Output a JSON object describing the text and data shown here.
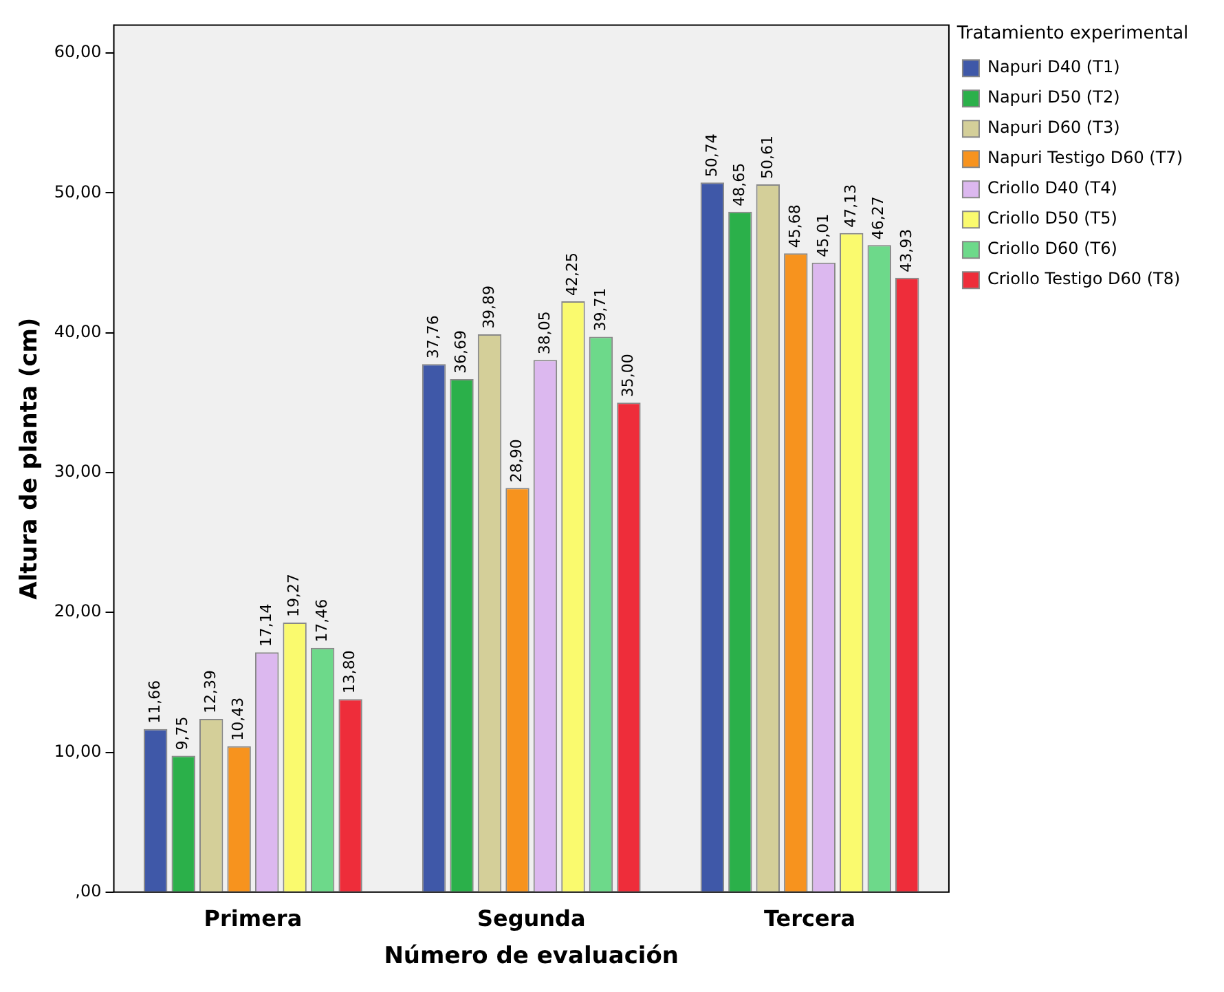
{
  "chart_data": {
    "type": "bar",
    "xlabel": "Número de evaluación",
    "ylabel": "Altura de planta (cm)",
    "legend_title": "Tratamiento experimental",
    "legend": "right",
    "categories": [
      "Primera",
      "Segunda",
      "Tercera"
    ],
    "series": [
      {
        "name": "Napuri D40 (T1)",
        "color": "#3f58a8",
        "values": [
          11.66,
          37.76,
          50.74
        ],
        "value_labels": [
          "11,66",
          "37,76",
          "50,74"
        ]
      },
      {
        "name": "Napuri D50 (T2)",
        "color": "#2bb04a",
        "values": [
          9.75,
          36.69,
          48.65
        ],
        "value_labels": [
          "9,75",
          "36,69",
          "48,65"
        ]
      },
      {
        "name": "Napuri D60 (T3)",
        "color": "#d4cf99",
        "values": [
          12.39,
          39.89,
          50.61
        ],
        "value_labels": [
          "12,39",
          "39,89",
          "50,61"
        ]
      },
      {
        "name": "Napuri Testigo D60 (T7)",
        "color": "#f7931e",
        "values": [
          10.43,
          28.9,
          45.68
        ],
        "value_labels": [
          "10,43",
          "28,90",
          "45,68"
        ]
      },
      {
        "name": "Criollo D40 (T4)",
        "color": "#dcb8ef",
        "values": [
          17.14,
          38.05,
          45.01
        ],
        "value_labels": [
          "17,14",
          "38,05",
          "45,01"
        ]
      },
      {
        "name": "Criollo D50 (T5)",
        "color": "#fafa6e",
        "values": [
          19.27,
          42.25,
          47.13
        ],
        "value_labels": [
          "19,27",
          "42,25",
          "47,13"
        ]
      },
      {
        "name": "Criollo D60 (T6)",
        "color": "#6dd98a",
        "values": [
          17.46,
          39.71,
          46.27
        ],
        "value_labels": [
          "17,46",
          "39,71",
          "46,27"
        ]
      },
      {
        "name": "Criollo Testigo D60 (T8)",
        "color": "#ee2d3a",
        "values": [
          13.8,
          35.0,
          43.93
        ],
        "value_labels": [
          "13,80",
          "35,00",
          "43,93"
        ]
      }
    ],
    "ylim": [
      0,
      62
    ],
    "yticks": [
      {
        "value": 0,
        "label": ",00"
      },
      {
        "value": 10,
        "label": "10,00"
      },
      {
        "value": 20,
        "label": "20,00"
      },
      {
        "value": 30,
        "label": "30,00"
      },
      {
        "value": 40,
        "label": "40,00"
      },
      {
        "value": 50,
        "label": "50,00"
      },
      {
        "value": 60,
        "label": "60,00"
      }
    ],
    "grid": false
  }
}
